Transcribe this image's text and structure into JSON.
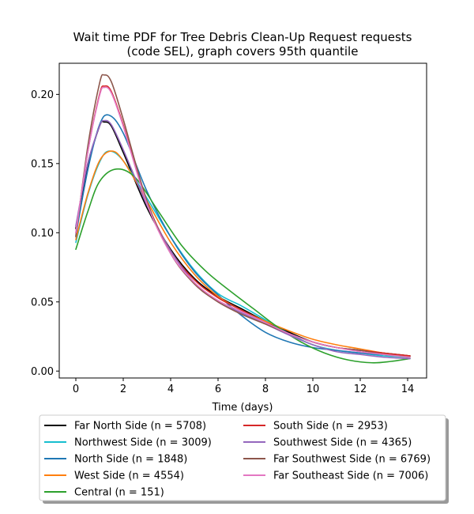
{
  "chart_data": {
    "type": "line",
    "title_line1": "Wait time PDF for Tree Debris Clean-Up Request  requests",
    "title_line2": "(code SEL), graph covers 95th quantile",
    "xlabel": "Time (days)",
    "ylabel": "",
    "xlim": [
      -0.7,
      14.8
    ],
    "ylim": [
      -0.005,
      0.2225
    ],
    "xticks": [
      0,
      2,
      4,
      6,
      8,
      10,
      12,
      14
    ],
    "xtick_labels": [
      "0",
      "2",
      "4",
      "6",
      "8",
      "10",
      "12",
      "14"
    ],
    "yticks": [
      0.0,
      0.05,
      0.1,
      0.15,
      0.2
    ],
    "ytick_labels": [
      "0.00",
      "0.05",
      "0.10",
      "0.15",
      "0.20"
    ],
    "grid": false,
    "legend_position": "below",
    "series": [
      {
        "name": "Far North Side (n = 5708)",
        "color": "#000000",
        "points": [
          [
            0,
            0.103
          ],
          [
            0.5,
            0.148
          ],
          [
            1,
            0.177
          ],
          [
            1.2,
            0.18
          ],
          [
            1.5,
            0.177
          ],
          [
            2,
            0.158
          ],
          [
            3,
            0.118
          ],
          [
            4,
            0.088
          ],
          [
            5,
            0.067
          ],
          [
            6,
            0.054
          ],
          [
            7,
            0.045
          ],
          [
            8,
            0.036
          ],
          [
            9,
            0.028
          ],
          [
            10,
            0.021
          ],
          [
            11,
            0.017
          ],
          [
            12,
            0.015
          ],
          [
            13,
            0.013
          ],
          [
            14.1,
            0.011
          ]
        ]
      },
      {
        "name": "Northwest Side (n = 3009)",
        "color": "#17becf",
        "points": [
          [
            0,
            0.093
          ],
          [
            0.5,
            0.127
          ],
          [
            1,
            0.151
          ],
          [
            1.4,
            0.159
          ],
          [
            2,
            0.152
          ],
          [
            3,
            0.125
          ],
          [
            4,
            0.097
          ],
          [
            5,
            0.073
          ],
          [
            6,
            0.056
          ],
          [
            7,
            0.047
          ],
          [
            8,
            0.037
          ],
          [
            9,
            0.027
          ],
          [
            10,
            0.019
          ],
          [
            11,
            0.015
          ],
          [
            12,
            0.013
          ],
          [
            13,
            0.011
          ],
          [
            14.1,
            0.01
          ]
        ]
      },
      {
        "name": "North Side (n = 1848)",
        "color": "#1f77b4",
        "points": [
          [
            0,
            0.098
          ],
          [
            0.5,
            0.145
          ],
          [
            1,
            0.178
          ],
          [
            1.4,
            0.185
          ],
          [
            2,
            0.172
          ],
          [
            3,
            0.13
          ],
          [
            4,
            0.097
          ],
          [
            5,
            0.072
          ],
          [
            6,
            0.055
          ],
          [
            7,
            0.04
          ],
          [
            8,
            0.028
          ],
          [
            9,
            0.021
          ],
          [
            10,
            0.017
          ],
          [
            11,
            0.015
          ],
          [
            12,
            0.013
          ],
          [
            13,
            0.012
          ],
          [
            14.1,
            0.011
          ]
        ]
      },
      {
        "name": "West Side (n = 4554)",
        "color": "#ff7f0e",
        "points": [
          [
            0,
            0.095
          ],
          [
            0.5,
            0.128
          ],
          [
            1,
            0.152
          ],
          [
            1.5,
            0.159
          ],
          [
            2,
            0.152
          ],
          [
            3,
            0.123
          ],
          [
            4,
            0.093
          ],
          [
            5,
            0.07
          ],
          [
            6,
            0.054
          ],
          [
            7,
            0.044
          ],
          [
            8,
            0.036
          ],
          [
            9,
            0.029
          ],
          [
            10,
            0.023
          ],
          [
            11,
            0.019
          ],
          [
            12,
            0.016
          ],
          [
            13,
            0.013
          ],
          [
            14.1,
            0.011
          ]
        ]
      },
      {
        "name": "Central (n = 151)",
        "color": "#2ca02c",
        "points": [
          [
            0,
            0.088
          ],
          [
            0.5,
            0.115
          ],
          [
            1,
            0.137
          ],
          [
            1.7,
            0.146
          ],
          [
            2.5,
            0.14
          ],
          [
            3.5,
            0.115
          ],
          [
            4.5,
            0.09
          ],
          [
            5.5,
            0.072
          ],
          [
            6.5,
            0.058
          ],
          [
            7.5,
            0.045
          ],
          [
            8.5,
            0.032
          ],
          [
            9.5,
            0.021
          ],
          [
            10.5,
            0.013
          ],
          [
            11.5,
            0.008
          ],
          [
            12.5,
            0.006
          ],
          [
            13.3,
            0.007
          ],
          [
            14.1,
            0.009
          ]
        ]
      },
      {
        "name": "South Side (n = 2953)",
        "color": "#d62728",
        "points": [
          [
            0,
            0.1
          ],
          [
            0.5,
            0.158
          ],
          [
            1,
            0.2
          ],
          [
            1.2,
            0.206
          ],
          [
            1.5,
            0.202
          ],
          [
            2,
            0.178
          ],
          [
            3,
            0.122
          ],
          [
            4,
            0.087
          ],
          [
            5,
            0.066
          ],
          [
            6,
            0.053
          ],
          [
            7,
            0.044
          ],
          [
            8,
            0.035
          ],
          [
            9,
            0.027
          ],
          [
            10,
            0.021
          ],
          [
            11,
            0.017
          ],
          [
            12,
            0.015
          ],
          [
            13,
            0.013
          ],
          [
            14.1,
            0.011
          ]
        ]
      },
      {
        "name": "Southwest Side (n = 4365)",
        "color": "#9467bd",
        "points": [
          [
            0,
            0.105
          ],
          [
            0.5,
            0.15
          ],
          [
            1,
            0.177
          ],
          [
            1.2,
            0.181
          ],
          [
            1.5,
            0.178
          ],
          [
            2,
            0.16
          ],
          [
            3,
            0.12
          ],
          [
            4,
            0.087
          ],
          [
            5,
            0.064
          ],
          [
            6,
            0.05
          ],
          [
            7,
            0.042
          ],
          [
            8,
            0.034
          ],
          [
            9,
            0.026
          ],
          [
            10,
            0.019
          ],
          [
            11,
            0.014
          ],
          [
            12,
            0.012
          ],
          [
            13,
            0.01
          ],
          [
            14.1,
            0.009
          ]
        ]
      },
      {
        "name": "Far Southwest Side (n = 6769)",
        "color": "#8c564b",
        "points": [
          [
            0,
            0.097
          ],
          [
            0.5,
            0.162
          ],
          [
            1,
            0.208
          ],
          [
            1.2,
            0.214
          ],
          [
            1.5,
            0.209
          ],
          [
            2,
            0.182
          ],
          [
            3,
            0.123
          ],
          [
            4,
            0.085
          ],
          [
            5,
            0.063
          ],
          [
            6,
            0.05
          ],
          [
            7,
            0.041
          ],
          [
            8,
            0.034
          ],
          [
            9,
            0.027
          ],
          [
            10,
            0.021
          ],
          [
            11,
            0.017
          ],
          [
            12,
            0.015
          ],
          [
            13,
            0.012
          ],
          [
            14.1,
            0.01
          ]
        ]
      },
      {
        "name": "Far Southeast Side (n = 7006)",
        "color": "#e377c2",
        "points": [
          [
            0,
            0.1
          ],
          [
            0.5,
            0.158
          ],
          [
            1,
            0.199
          ],
          [
            1.2,
            0.205
          ],
          [
            1.5,
            0.201
          ],
          [
            2,
            0.177
          ],
          [
            3,
            0.121
          ],
          [
            4,
            0.085
          ],
          [
            5,
            0.064
          ],
          [
            6,
            0.051
          ],
          [
            7,
            0.043
          ],
          [
            8,
            0.035
          ],
          [
            9,
            0.027
          ],
          [
            10,
            0.021
          ],
          [
            11,
            0.017
          ],
          [
            12,
            0.014
          ],
          [
            13,
            0.012
          ],
          [
            14.1,
            0.01
          ]
        ]
      }
    ]
  }
}
